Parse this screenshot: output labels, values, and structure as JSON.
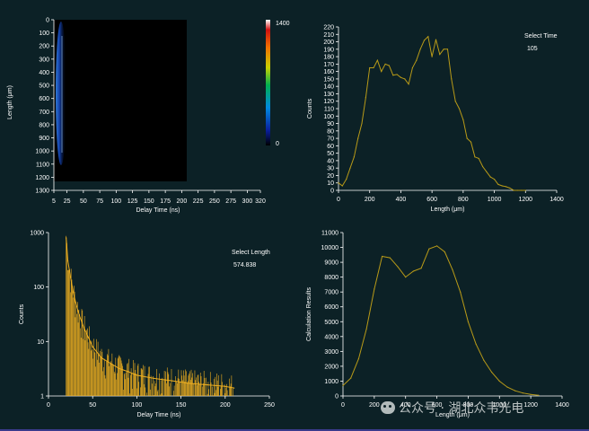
{
  "colors": {
    "background": "#0c2126",
    "axis": "#ffffff",
    "curve": "#b89a18",
    "decay": "#f0b020"
  },
  "heatmap": {
    "ylabel": "Length (μm)",
    "xlabel": "Delay Time (ns)",
    "yticks": [
      "0",
      "100",
      "200",
      "300",
      "400",
      "500",
      "600",
      "700",
      "800",
      "900",
      "1000",
      "1100",
      "1200",
      "1300"
    ],
    "xticks": [
      "5",
      "25",
      "50",
      "75",
      "100",
      "125",
      "150",
      "175",
      "200",
      "225",
      "250",
      "275",
      "300",
      "320"
    ],
    "colorbar_max": "1400",
    "colorbar_min": "0"
  },
  "select_time": {
    "label": "Select Time",
    "value": "105"
  },
  "select_length": {
    "label": "Select Length",
    "value": "574.838"
  },
  "watermark": {
    "text": "公众号 · 湖北众韦光电",
    "icon": "wechat-icon"
  },
  "chart_data": [
    {
      "type": "heatmap",
      "title": "",
      "xlabel": "Delay Time (ns)",
      "ylabel": "Length (μm)",
      "xlim": [
        5,
        320
      ],
      "ylim": [
        0,
        1300
      ],
      "colorbar_range": [
        0,
        1400
      ],
      "description_of_signal": "intensity concentrated near delay 20-30 ns across lengths 100-1100"
    },
    {
      "type": "line",
      "xlabel": "Length  (μm)",
      "ylabel": "Counts",
      "xlim": [
        0,
        1400
      ],
      "ylim": [
        0,
        220
      ],
      "xticks": [
        0,
        200,
        400,
        600,
        800,
        1000,
        1200,
        1400
      ],
      "yticks": [
        0,
        10,
        20,
        30,
        40,
        50,
        60,
        70,
        80,
        90,
        100,
        110,
        120,
        130,
        140,
        150,
        160,
        170,
        180,
        190,
        200,
        210,
        220
      ],
      "x": [
        0,
        25,
        50,
        75,
        100,
        125,
        150,
        175,
        200,
        225,
        250,
        275,
        300,
        325,
        350,
        375,
        400,
        425,
        450,
        475,
        500,
        525,
        550,
        575,
        600,
        625,
        650,
        675,
        700,
        725,
        750,
        775,
        800,
        825,
        850,
        875,
        900,
        925,
        950,
        975,
        1000,
        1025,
        1050,
        1075,
        1100,
        1125,
        1150,
        1175,
        1200
      ],
      "y": [
        10,
        6,
        15,
        30,
        45,
        70,
        90,
        125,
        165,
        165,
        175,
        160,
        170,
        168,
        155,
        156,
        152,
        150,
        143,
        165,
        175,
        190,
        202,
        207,
        180,
        203,
        183,
        190,
        190,
        150,
        120,
        110,
        95,
        70,
        65,
        45,
        43,
        32,
        25,
        18,
        15,
        8,
        6,
        5,
        3,
        0,
        0,
        0,
        0
      ]
    },
    {
      "type": "line",
      "xlabel": "Delay Time (ns)",
      "ylabel": "Counts",
      "yscale": "log",
      "xlim": [
        0,
        250
      ],
      "ylim": [
        1,
        1000
      ],
      "xticks": [
        0,
        50,
        100,
        150,
        200,
        250
      ],
      "yticks": [
        1,
        10,
        100,
        1000
      ],
      "x": [
        20,
        22,
        25,
        28,
        31,
        35,
        40,
        45,
        50,
        60,
        70,
        80,
        90,
        100,
        120,
        140,
        160,
        180,
        200,
        210
      ],
      "y": [
        800,
        300,
        150,
        80,
        50,
        30,
        18,
        12,
        8,
        5,
        4,
        3.2,
        2.8,
        2.4,
        2.1,
        1.9,
        1.7,
        1.6,
        1.5,
        1.4
      ]
    },
    {
      "type": "line",
      "xlabel": "Length  (μm)",
      "ylabel": "Calculation Results",
      "xlim": [
        0,
        1400
      ],
      "ylim": [
        0,
        11000
      ],
      "xticks": [
        0,
        200,
        400,
        600,
        800,
        1000,
        1200,
        1400
      ],
      "yticks": [
        0,
        1000,
        2000,
        3000,
        4000,
        5000,
        6000,
        7000,
        8000,
        9000,
        10000,
        11000
      ],
      "x": [
        0,
        50,
        100,
        150,
        200,
        250,
        300,
        350,
        400,
        450,
        500,
        550,
        600,
        650,
        700,
        750,
        800,
        850,
        900,
        950,
        1000,
        1050,
        1100,
        1150,
        1200,
        1250
      ],
      "y": [
        700,
        1200,
        2500,
        4500,
        7200,
        9400,
        9300,
        8700,
        8000,
        8400,
        8600,
        9900,
        10100,
        9700,
        8500,
        7000,
        5000,
        3500,
        2400,
        1600,
        1000,
        600,
        350,
        200,
        100,
        50
      ]
    }
  ]
}
